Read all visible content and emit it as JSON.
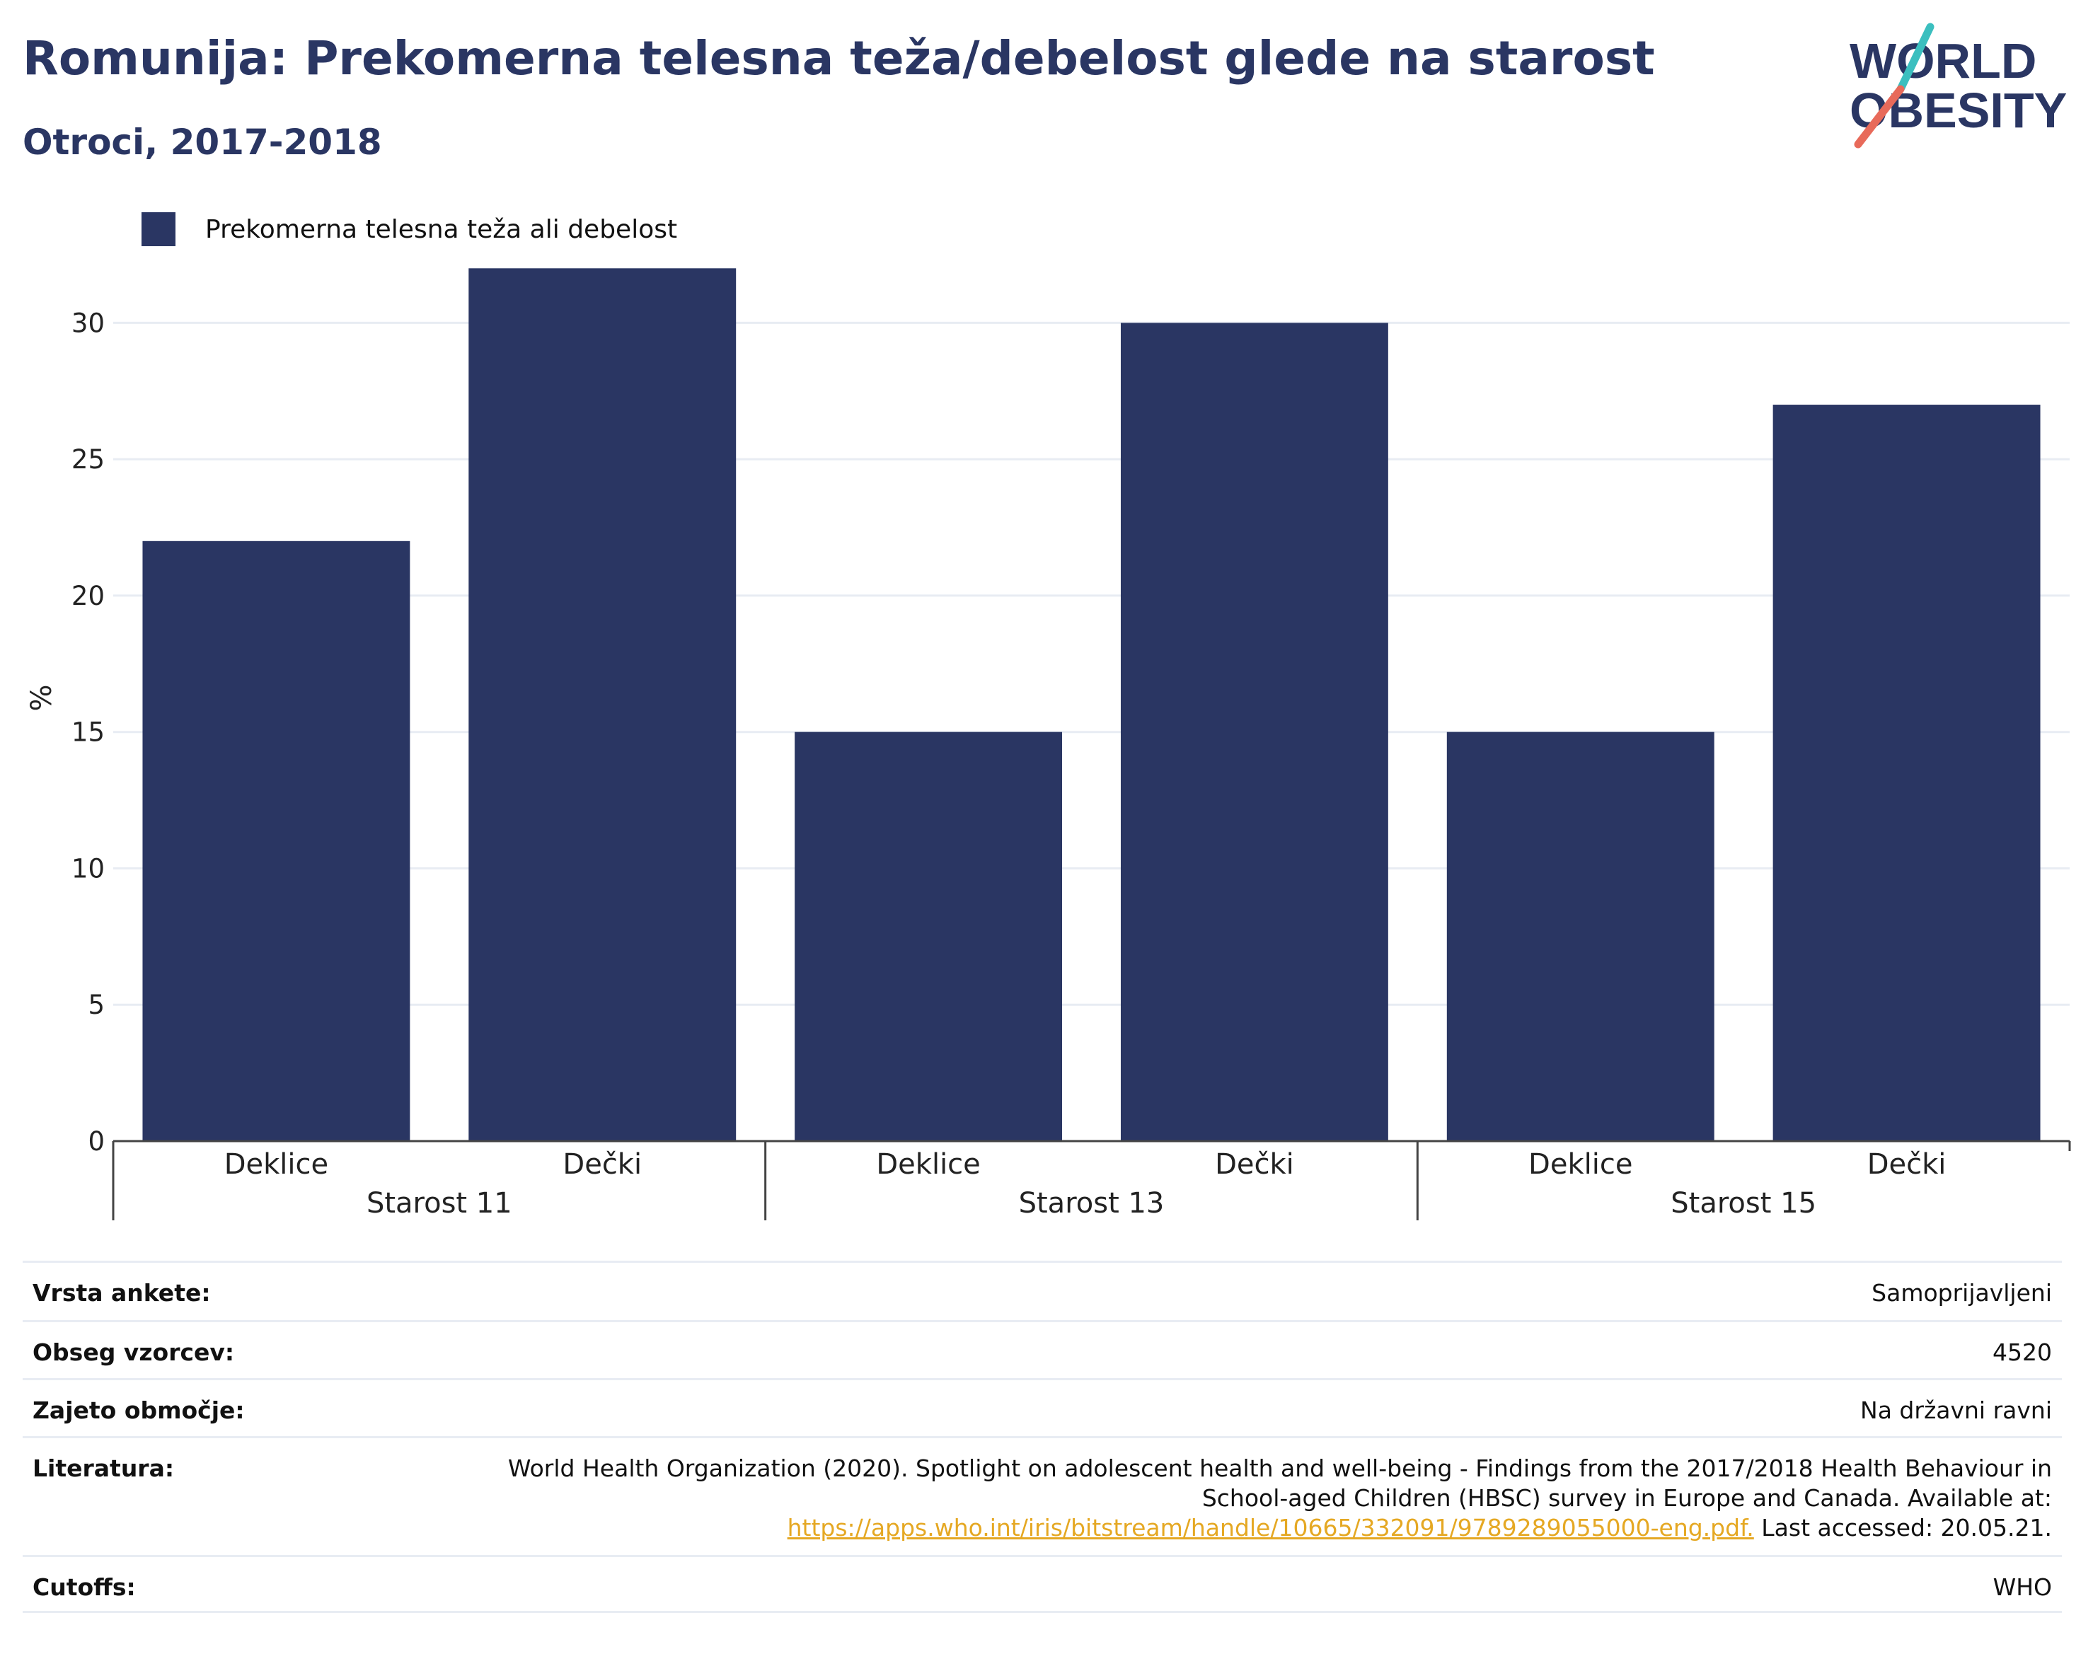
{
  "header": {
    "title": "Romunija: Prekomerna telesna teža/debelost glede na starost",
    "subtitle": "Otroci, 2017-2018",
    "logo": {
      "line1": "WORLD",
      "line2": "OBESITY"
    }
  },
  "colors": {
    "bar": "#2a3663",
    "title": "#2a3663",
    "grid": "#e8ecf3",
    "link": "#e5a823",
    "logo_teal": "#3bbfbf",
    "logo_coral": "#e86a5a"
  },
  "chart_data": {
    "type": "bar",
    "groups": [
      {
        "label": "Starost 11",
        "categories": [
          "Deklice",
          "Dečki"
        ],
        "values": [
          22,
          32
        ]
      },
      {
        "label": "Starost 13",
        "categories": [
          "Deklice",
          "Dečki"
        ],
        "values": [
          15,
          30
        ]
      },
      {
        "label": "Starost 15",
        "categories": [
          "Deklice",
          "Dečki"
        ],
        "values": [
          15,
          27
        ]
      }
    ],
    "series": [
      {
        "name": "Prekomerna telesna teža ali debelost"
      }
    ],
    "ylabel": "%",
    "ylim": [
      0,
      32.5
    ],
    "yticks": [
      0,
      5,
      10,
      15,
      20,
      25,
      30
    ],
    "grid": true,
    "legend_position": "top-left"
  },
  "meta": {
    "rows": [
      {
        "label": "Vrsta ankete:",
        "value": "Samoprijavljeni"
      },
      {
        "label": "Obseg vzorcev:",
        "value": "4520"
      },
      {
        "label": "Zajeto območje:",
        "value": "Na državni ravni"
      },
      {
        "label": "Cutoffs:",
        "value": "WHO"
      }
    ],
    "literature": {
      "label": "Literatura:",
      "text_line1": "World Health Organization (2020). Spotlight on adolescent health and well-being - Findings from the 2017/2018 Health Behaviour in",
      "text_line2": "School-aged Children (HBSC) survey in Europe and Canada. Available at:",
      "link": "https://apps.who.int/iris/bitstream/handle/10665/332091/9789289055000-eng.pdf.",
      "suffix": " Last accessed: 20.05.21."
    }
  }
}
